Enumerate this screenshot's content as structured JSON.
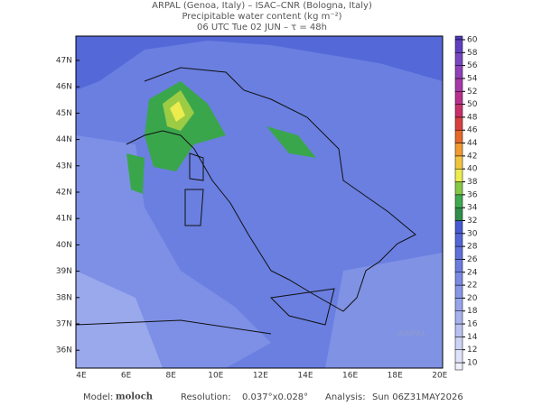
{
  "header": {
    "lines": [
      "ARPAL (Genoa, Italy)  –  ISAC–CNR (Bologna, Italy)",
      "Precipitable water content (kg m⁻²)",
      "06 UTC Tue 02 JUN  –  τ = 48h"
    ]
  },
  "map": {
    "lat_labels": [
      "47N",
      "46N",
      "45N",
      "44N",
      "43N",
      "42N",
      "41N",
      "40N",
      "39N",
      "38N",
      "37N",
      "36N"
    ],
    "lon_labels": [
      "4E",
      "6E",
      "8E",
      "10E",
      "12E",
      "14E",
      "16E",
      "18E",
      "20E"
    ],
    "watermark": "ARPAL"
  },
  "colorbar": {
    "levels": [
      10,
      12,
      14,
      16,
      18,
      20,
      22,
      24,
      26,
      28,
      30,
      32,
      34,
      36,
      38,
      40,
      42,
      44,
      46,
      48,
      50,
      52,
      54,
      56,
      58,
      60
    ],
    "colors": [
      "#dfe3fa",
      "#cdd3f6",
      "#b9c1f2",
      "#a7b1ee",
      "#97a3ea",
      "#8896e6",
      "#7a89e2",
      "#6c7cde",
      "#5f70da",
      "#5366d6",
      "#475ad2",
      "#2f8f4a",
      "#3faa4e",
      "#86c846",
      "#ecec4e",
      "#f2c43e",
      "#f09a30",
      "#e4682a",
      "#d84040",
      "#c8306a",
      "#b8308e",
      "#a838a8",
      "#9040b8",
      "#7848c0",
      "#6040c0"
    ]
  },
  "footer": {
    "model_label": "Model:",
    "model": "moloch",
    "resolution_label": "Resolution:",
    "resolution": "0.037°x0.028°",
    "analysis_label": "Analysis:",
    "analysis": "Sun 06Z31MAY2026"
  }
}
